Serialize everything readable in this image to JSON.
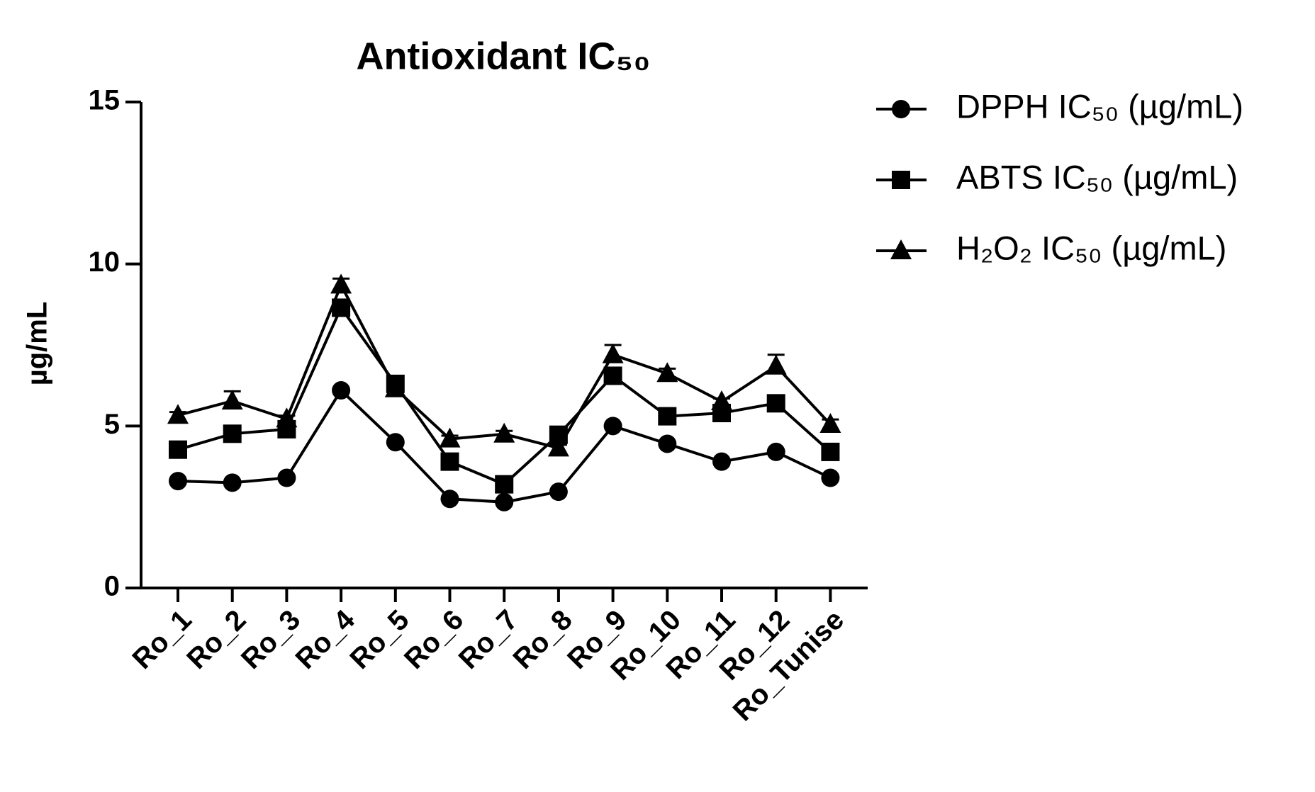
{
  "chart_data": {
    "type": "line",
    "title": "Antioxidant IC₅₀",
    "y_label": "µg/mL",
    "categories": [
      "Ro_1",
      "Ro_2",
      "Ro_3",
      "Ro_4",
      "Ro_5",
      "Ro_6",
      "Ro_7",
      "Ro_8",
      "Ro_9",
      "Ro_10",
      "Ro_11",
      "Ro_12",
      "Ro_Tunise"
    ],
    "series": [
      {
        "name": "DPPH IC₅₀ (µg/mL)",
        "color": "#000000",
        "marker": "circle",
        "values": [
          3.3,
          3.25,
          3.4,
          6.1,
          4.5,
          2.75,
          2.65,
          2.97,
          5.0,
          4.45,
          3.9,
          4.2,
          3.4
        ]
      },
      {
        "name": "ABTS IC₅₀ (µg/mL)",
        "color": "#000000",
        "marker": "square",
        "values": [
          4.27,
          4.76,
          4.9,
          8.65,
          6.3,
          3.9,
          3.2,
          4.73,
          6.55,
          5.3,
          5.4,
          5.7,
          4.2
        ]
      },
      {
        "name": "H₂O₂ IC₅₀ (µg/mL)",
        "color": "#000000",
        "marker": "triangle",
        "values": [
          5.33,
          5.77,
          5.22,
          9.35,
          6.15,
          4.6,
          4.75,
          4.32,
          7.2,
          6.62,
          5.75,
          6.85,
          5.05
        ],
        "errors": [
          0.1,
          0.3,
          0.1,
          0.2,
          0.1,
          0.1,
          0.1,
          0.1,
          0.3,
          0.15,
          0.1,
          0.35,
          0.15
        ]
      }
    ],
    "ylim": [
      0,
      15
    ],
    "yticks": [
      0,
      5,
      10,
      15
    ],
    "grid": false
  }
}
